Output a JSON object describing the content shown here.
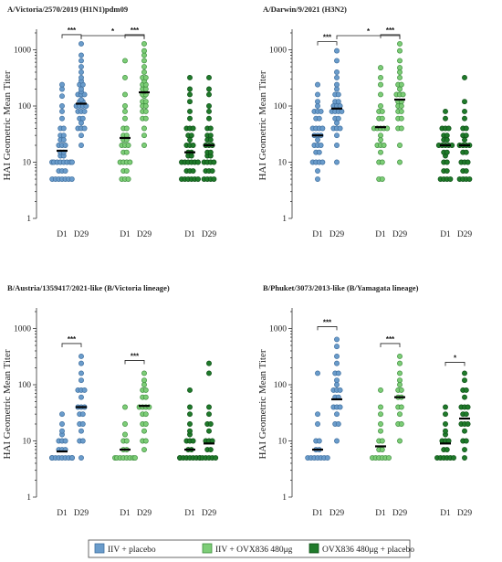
{
  "colors": {
    "iiv_placebo": "#6a9ccb",
    "iiv_placebo_edge": "#3f6f9f",
    "iiv_ovx": "#7dcd77",
    "iiv_ovx_edge": "#3f8f3f",
    "ovx_placebo": "#1f7a2a",
    "ovx_placebo_edge": "#0d4f16"
  },
  "chart_data": [
    {
      "type": "scatter",
      "title": "A/Victoria/2570/2019 (H1N1)pdm09",
      "ylabel": "HAI Geometric Mean Titer",
      "yscale": "log",
      "ylim": [
        1,
        2000
      ],
      "yticks": [
        "1",
        "10",
        "100",
        "1000"
      ],
      "categories": [
        "D1",
        "D29",
        "D1",
        "D29",
        "D1",
        "D29"
      ],
      "series": [
        {
          "group": "iiv_placebo",
          "day": "D1",
          "gmt": 16,
          "values": [
            5,
            5,
            5,
            5,
            5,
            5,
            5,
            7,
            7,
            7,
            10,
            10,
            10,
            10,
            10,
            10,
            10,
            10,
            13,
            13,
            15,
            15,
            20,
            20,
            20,
            25,
            25,
            30,
            30,
            40,
            40,
            60,
            80,
            100,
            150,
            200,
            240
          ]
        },
        {
          "group": "iiv_placebo",
          "day": "D29",
          "gmt": 110,
          "values": [
            20,
            30,
            40,
            40,
            40,
            50,
            60,
            60,
            80,
            80,
            80,
            100,
            100,
            100,
            100,
            120,
            120,
            130,
            160,
            160,
            160,
            180,
            200,
            240,
            240,
            280,
            320,
            400,
            500,
            640,
            800,
            1280
          ]
        },
        {
          "group": "iiv_ovx",
          "day": "D1",
          "gmt": 27,
          "values": [
            5,
            5,
            5,
            7,
            7,
            10,
            10,
            10,
            10,
            15,
            15,
            20,
            20,
            20,
            25,
            25,
            30,
            30,
            40,
            40,
            60,
            80,
            100,
            160,
            320,
            640
          ]
        },
        {
          "group": "iiv_ovx",
          "day": "D29",
          "gmt": 175,
          "values": [
            20,
            30,
            40,
            60,
            60,
            80,
            80,
            100,
            100,
            120,
            120,
            150,
            160,
            160,
            180,
            200,
            200,
            240,
            240,
            280,
            320,
            320,
            400,
            500,
            640,
            800,
            960,
            1280
          ]
        },
        {
          "group": "ovx_placebo",
          "day": "D1",
          "gmt": 15,
          "values": [
            5,
            5,
            5,
            5,
            5,
            5,
            7,
            7,
            7,
            10,
            10,
            10,
            10,
            10,
            10,
            13,
            13,
            15,
            15,
            20,
            20,
            20,
            25,
            30,
            30,
            40,
            40,
            40,
            60,
            80,
            120,
            160,
            200,
            320
          ]
        },
        {
          "group": "ovx_placebo",
          "day": "D29",
          "gmt": 20,
          "values": [
            5,
            5,
            5,
            5,
            7,
            7,
            7,
            10,
            10,
            10,
            10,
            13,
            13,
            15,
            15,
            20,
            20,
            20,
            25,
            25,
            30,
            30,
            40,
            40,
            60,
            80,
            100,
            160,
            200,
            320
          ]
        }
      ],
      "significance": [
        {
          "between": [
            "D1",
            "D29"
          ],
          "group": "iiv_placebo",
          "label": "***"
        },
        {
          "between": [
            "D1",
            "D29"
          ],
          "group": "iiv_ovx",
          "label": "***"
        },
        {
          "between": [
            "iiv_placebo D29",
            "iiv_ovx D29"
          ],
          "label": "*"
        }
      ]
    },
    {
      "type": "scatter",
      "title": "A/Darwin/9/2021 (H3N2)",
      "ylabel": "HAI Geometric Mean Titer",
      "yscale": "log",
      "ylim": [
        1,
        2000
      ],
      "yticks": [
        "1",
        "10",
        "100",
        "1000"
      ],
      "categories": [
        "D1",
        "D29",
        "D1",
        "D29",
        "D1",
        "D29"
      ],
      "series": [
        {
          "group": "iiv_placebo",
          "day": "D1",
          "gmt": 30,
          "values": [
            5,
            7,
            10,
            10,
            10,
            10,
            15,
            15,
            20,
            20,
            20,
            25,
            30,
            30,
            30,
            40,
            40,
            40,
            40,
            60,
            60,
            80,
            80,
            80,
            100,
            120,
            160,
            240
          ]
        },
        {
          "group": "iiv_placebo",
          "day": "D29",
          "gmt": 90,
          "values": [
            10,
            20,
            30,
            40,
            40,
            40,
            50,
            60,
            60,
            80,
            80,
            80,
            80,
            100,
            100,
            100,
            120,
            120,
            160,
            160,
            200,
            240,
            320,
            400,
            640,
            960
          ]
        },
        {
          "group": "iiv_ovx",
          "day": "D1",
          "gmt": 42,
          "values": [
            5,
            5,
            10,
            10,
            15,
            20,
            20,
            20,
            25,
            30,
            40,
            40,
            40,
            40,
            40,
            60,
            60,
            80,
            80,
            100,
            160,
            240,
            320,
            480
          ]
        },
        {
          "group": "iiv_ovx",
          "day": "D29",
          "gmt": 130,
          "values": [
            10,
            20,
            40,
            40,
            60,
            60,
            80,
            80,
            100,
            100,
            120,
            120,
            160,
            160,
            160,
            200,
            240,
            240,
            320,
            400,
            480,
            640,
            960,
            1280
          ]
        },
        {
          "group": "ovx_placebo",
          "day": "D1",
          "gmt": 20,
          "values": [
            5,
            5,
            5,
            5,
            7,
            7,
            10,
            10,
            13,
            15,
            15,
            20,
            20,
            20,
            20,
            20,
            25,
            25,
            30,
            30,
            40,
            40,
            40,
            60,
            80
          ]
        },
        {
          "group": "ovx_placebo",
          "day": "D29",
          "gmt": 20,
          "values": [
            5,
            5,
            5,
            5,
            7,
            7,
            10,
            10,
            10,
            15,
            15,
            20,
            20,
            20,
            20,
            25,
            30,
            30,
            40,
            40,
            60,
            80,
            120,
            320
          ]
        }
      ],
      "significance": [
        {
          "between": [
            "D1",
            "D29"
          ],
          "group": "iiv_placebo",
          "label": "***"
        },
        {
          "between": [
            "D1",
            "D29"
          ],
          "group": "iiv_ovx",
          "label": "***"
        },
        {
          "between": [
            "iiv_placebo D29",
            "iiv_ovx D29"
          ],
          "label": "*"
        }
      ]
    },
    {
      "type": "scatter",
      "title": "B/Austria/1359417/2021-like (B/Victoria lineage)",
      "ylabel": "HAI Geometric Mean Titer",
      "yscale": "log",
      "ylim": [
        1,
        2000
      ],
      "yticks": [
        "1",
        "10",
        "100",
        "1000"
      ],
      "categories": [
        "D1",
        "D29",
        "D1",
        "D29",
        "D1",
        "D29"
      ],
      "series": [
        {
          "group": "iiv_placebo",
          "day": "D1",
          "gmt": 6.5,
          "values": [
            5,
            5,
            5,
            5,
            5,
            5,
            5,
            5,
            5,
            5,
            5,
            7,
            7,
            7,
            10,
            10,
            10,
            13,
            15,
            20,
            30
          ]
        },
        {
          "group": "iiv_placebo",
          "day": "D29",
          "gmt": 40,
          "values": [
            5,
            10,
            10,
            15,
            20,
            20,
            30,
            30,
            40,
            40,
            40,
            60,
            80,
            80,
            80,
            120,
            160,
            240,
            320
          ]
        },
        {
          "group": "iiv_ovx",
          "day": "D1",
          "gmt": 7,
          "values": [
            5,
            5,
            5,
            5,
            5,
            5,
            5,
            5,
            7,
            7,
            10,
            10,
            13,
            20,
            40
          ]
        },
        {
          "group": "iiv_ovx",
          "day": "D29",
          "gmt": 42,
          "values": [
            7,
            10,
            10,
            15,
            20,
            20,
            30,
            30,
            40,
            40,
            40,
            40,
            60,
            60,
            80,
            80,
            100,
            120,
            160
          ]
        },
        {
          "group": "ovx_placebo",
          "day": "D1",
          "gmt": 7,
          "values": [
            5,
            5,
            5,
            5,
            5,
            5,
            5,
            5,
            5,
            7,
            7,
            10,
            10,
            10,
            13,
            15,
            20,
            30,
            40,
            80
          ]
        },
        {
          "group": "ovx_placebo",
          "day": "D29",
          "gmt": 9,
          "values": [
            5,
            5,
            5,
            5,
            5,
            7,
            7,
            10,
            10,
            10,
            15,
            20,
            20,
            30,
            40,
            160,
            240
          ]
        }
      ],
      "significance": [
        {
          "between": [
            "D1",
            "D29"
          ],
          "group": "iiv_placebo",
          "label": "***"
        },
        {
          "between": [
            "D1",
            "D29"
          ],
          "group": "iiv_ovx",
          "label": "***"
        }
      ]
    },
    {
      "type": "scatter",
      "title": "B/Phuket/3073/2013-like (B/Yamagata lineage)",
      "ylabel": "HAI Geometric Mean Titer",
      "yscale": "log",
      "ylim": [
        1,
        2000
      ],
      "yticks": [
        "1",
        "10",
        "100",
        "1000"
      ],
      "categories": [
        "D1",
        "D29",
        "D1",
        "D29",
        "D1",
        "D29"
      ],
      "series": [
        {
          "group": "iiv_placebo",
          "day": "D1",
          "gmt": 7,
          "values": [
            5,
            5,
            5,
            5,
            5,
            5,
            5,
            7,
            7,
            10,
            10,
            20,
            30,
            160
          ]
        },
        {
          "group": "iiv_placebo",
          "day": "D29",
          "gmt": 55,
          "values": [
            10,
            20,
            20,
            30,
            40,
            40,
            40,
            60,
            60,
            80,
            80,
            80,
            100,
            120,
            160,
            160,
            240,
            320,
            480,
            640
          ]
        },
        {
          "group": "iiv_ovx",
          "day": "D1",
          "gmt": 8,
          "values": [
            5,
            5,
            5,
            5,
            5,
            5,
            7,
            7,
            10,
            10,
            15,
            20,
            30,
            40,
            80
          ]
        },
        {
          "group": "iiv_ovx",
          "day": "D29",
          "gmt": 60,
          "values": [
            10,
            20,
            20,
            30,
            40,
            40,
            60,
            60,
            80,
            80,
            100,
            120,
            160,
            240,
            320
          ]
        },
        {
          "group": "ovx_placebo",
          "day": "D1",
          "gmt": 9,
          "values": [
            5,
            5,
            5,
            5,
            5,
            5,
            7,
            7,
            10,
            10,
            10,
            13,
            15,
            20,
            30,
            40
          ]
        },
        {
          "group": "ovx_placebo",
          "day": "D29",
          "gmt": 25,
          "values": [
            5,
            7,
            10,
            10,
            15,
            20,
            20,
            20,
            30,
            30,
            40,
            40,
            40,
            60,
            80,
            80,
            120,
            160
          ]
        }
      ],
      "significance": [
        {
          "between": [
            "D1",
            "D29"
          ],
          "group": "iiv_placebo",
          "label": "***"
        },
        {
          "between": [
            "D1",
            "D29"
          ],
          "group": "iiv_ovx",
          "label": "***"
        },
        {
          "between": [
            "D1",
            "D29"
          ],
          "group": "ovx_placebo",
          "label": "*"
        }
      ]
    }
  ],
  "legend": [
    {
      "key": "iiv_placebo",
      "label": "IIV + placebo"
    },
    {
      "key": "iiv_ovx",
      "label": "IIV + OVX836 480μg"
    },
    {
      "key": "ovx_placebo",
      "label": "OVX836 480μg + placebo"
    }
  ]
}
